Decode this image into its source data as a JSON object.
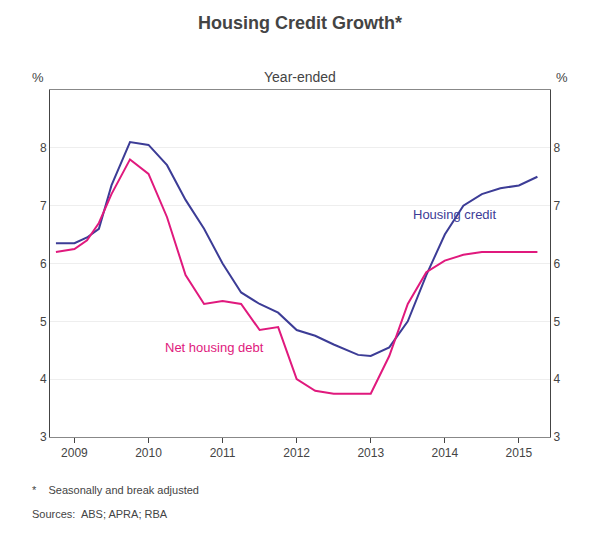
{
  "chart_data": {
    "type": "line",
    "title": "Housing Credit Growth*",
    "subtitle": "Year-ended",
    "ylabel": "%",
    "y2label": "%",
    "footnote": "*    Seasonally and break adjusted",
    "sources": "Sources:  ABS; APRA; RBA",
    "xlim": [
      2008.67,
      2015.42
    ],
    "xticks": [
      2009,
      2010,
      2011,
      2012,
      2013,
      2014,
      2015
    ],
    "ylim": [
      3,
      9
    ],
    "yticks": [
      3,
      4,
      5,
      6,
      7,
      8
    ],
    "y2lim": [
      3,
      9
    ],
    "y2ticks": [
      3,
      4,
      5,
      6,
      7,
      8
    ],
    "grid": true,
    "x": [
      2008.75,
      2009.0,
      2009.17,
      2009.33,
      2009.5,
      2009.75,
      2010.0,
      2010.25,
      2010.5,
      2010.75,
      2011.0,
      2011.25,
      2011.5,
      2011.75,
      2012.0,
      2012.25,
      2012.5,
      2012.67,
      2012.83,
      2013.0,
      2013.25,
      2013.5,
      2013.75,
      2014.0,
      2014.25,
      2014.5,
      2014.75,
      2015.0,
      2015.25
    ],
    "series": [
      {
        "name": "Housing credit",
        "color": "#3c3c96",
        "values": [
          6.35,
          6.35,
          6.45,
          6.6,
          7.35,
          8.1,
          8.05,
          7.7,
          7.1,
          6.6,
          6.0,
          5.5,
          5.3,
          5.15,
          4.85,
          4.75,
          4.6,
          4.5,
          4.42,
          4.4,
          4.55,
          5.0,
          5.8,
          6.5,
          7.0,
          7.2,
          7.3,
          7.35,
          7.5
        ]
      },
      {
        "name": "Net housing debt",
        "color": "#e0197d",
        "values": [
          6.2,
          6.25,
          6.4,
          6.7,
          7.2,
          7.8,
          7.55,
          6.8,
          5.8,
          5.3,
          5.35,
          5.3,
          4.85,
          4.9,
          4.0,
          3.8,
          3.75,
          3.75,
          3.75,
          3.75,
          4.4,
          5.3,
          5.85,
          6.05,
          6.15,
          6.2,
          6.2,
          6.2,
          6.2
        ]
      }
    ],
    "annotations": [
      {
        "text": "Housing credit",
        "x": 2013.55,
        "y": 6.85,
        "color": "#3c3c96"
      },
      {
        "text": "Net housing debt",
        "x": 2010.2,
        "y": 4.55,
        "color": "#e0197d"
      }
    ]
  }
}
